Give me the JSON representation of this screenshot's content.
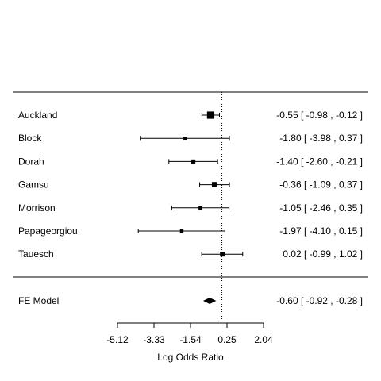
{
  "chart_data": {
    "type": "forest",
    "xlabel": "Log Odds Ratio",
    "xticks": [
      -5.12,
      -3.33,
      -1.54,
      0.25,
      2.04
    ],
    "xtick_labels": [
      "-5.12",
      "-3.33",
      "-1.54",
      "0.25",
      "2.04"
    ],
    "reference_line": 0,
    "studies": [
      {
        "name": "Auckland",
        "estimate": -0.55,
        "lower": -0.98,
        "upper": -0.12,
        "label": "-0.55 [ -0.98 , -0.12 ]",
        "weight": 3
      },
      {
        "name": "Block",
        "estimate": -1.8,
        "lower": -3.98,
        "upper": 0.37,
        "label": "-1.80 [ -3.98 ,  0.37 ]",
        "weight": 1
      },
      {
        "name": "Dorah",
        "estimate": -1.4,
        "lower": -2.6,
        "upper": -0.21,
        "label": "-1.40 [ -2.60 , -0.21 ]",
        "weight": 1.3
      },
      {
        "name": "Gamsu",
        "estimate": -0.36,
        "lower": -1.09,
        "upper": 0.37,
        "label": "-0.36 [ -1.09 ,  0.37 ]",
        "weight": 2
      },
      {
        "name": "Morrison",
        "estimate": -1.05,
        "lower": -2.46,
        "upper": 0.35,
        "label": "-1.05 [ -2.46 ,  0.35 ]",
        "weight": 1.2
      },
      {
        "name": "Papageorgiou",
        "estimate": -1.97,
        "lower": -4.1,
        "upper": 0.15,
        "label": "-1.97 [ -4.10 ,  0.15 ]",
        "weight": 1
      },
      {
        "name": "Tauesch",
        "estimate": 0.02,
        "lower": -0.99,
        "upper": 1.02,
        "label": " 0.02 [ -0.99 ,  1.02 ]",
        "weight": 1.6
      }
    ],
    "summary": {
      "name": "FE Model",
      "estimate": -0.6,
      "lower": -0.92,
      "upper": -0.28,
      "label": "-0.60 [ -0.92 , -0.28 ]"
    }
  }
}
